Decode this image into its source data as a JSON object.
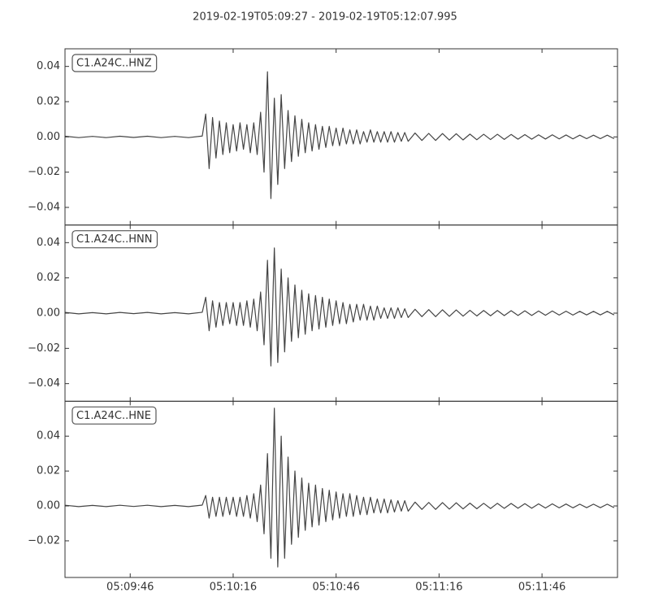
{
  "chart_data": {
    "type": "line",
    "title": "2019-02-19T05:09:27  -  2019-02-19T05:12:07.995",
    "xlim": [
      "05:09:27",
      "05:12:07.995"
    ],
    "xticks": [
      {
        "value": "05:09:46",
        "label": "05:09:46"
      },
      {
        "value": "05:10:16",
        "label": "05:10:16"
      },
      {
        "value": "05:10:46",
        "label": "05:10:46"
      },
      {
        "value": "05:11:16",
        "label": "05:11:16"
      },
      {
        "value": "05:11:46",
        "label": "05:11:46"
      }
    ],
    "x": [
      "05:09:27",
      "05:09:31",
      "05:09:35",
      "05:09:39",
      "05:09:43",
      "05:09:47",
      "05:09:51",
      "05:09:55",
      "05:09:59",
      "05:10:03",
      "05:10:07",
      "05:10:08",
      "05:10:09",
      "05:10:10",
      "05:10:11",
      "05:10:12",
      "05:10:13",
      "05:10:14",
      "05:10:15",
      "05:10:16",
      "05:10:17",
      "05:10:18",
      "05:10:19",
      "05:10:20",
      "05:10:21",
      "05:10:22",
      "05:10:23",
      "05:10:24",
      "05:10:25",
      "05:10:26",
      "05:10:27",
      "05:10:28",
      "05:10:29",
      "05:10:30",
      "05:10:31",
      "05:10:32",
      "05:10:33",
      "05:10:34",
      "05:10:35",
      "05:10:36",
      "05:10:37",
      "05:10:38",
      "05:10:39",
      "05:10:40",
      "05:10:41",
      "05:10:42",
      "05:10:43",
      "05:10:44",
      "05:10:45",
      "05:10:46",
      "05:10:47",
      "05:10:48",
      "05:10:49",
      "05:10:50",
      "05:10:51",
      "05:10:52",
      "05:10:53",
      "05:10:54",
      "05:10:55",
      "05:10:56",
      "05:10:57",
      "05:10:58",
      "05:10:59",
      "05:11:00",
      "05:11:01",
      "05:11:02",
      "05:11:03",
      "05:11:04",
      "05:11:05",
      "05:11:06",
      "05:11:07",
      "05:11:09",
      "05:11:11",
      "05:11:13",
      "05:11:15",
      "05:11:17",
      "05:11:19",
      "05:11:21",
      "05:11:23",
      "05:11:25",
      "05:11:27",
      "05:11:29",
      "05:11:31",
      "05:11:33",
      "05:11:35",
      "05:11:37",
      "05:11:39",
      "05:11:41",
      "05:11:43",
      "05:11:45",
      "05:11:47",
      "05:11:49",
      "05:11:51",
      "05:11:53",
      "05:11:55",
      "05:11:57",
      "05:11:59",
      "05:12:01",
      "05:12:03",
      "05:12:05",
      "05:12:07"
    ],
    "series": [
      {
        "name": "C1.A24C..HNZ",
        "color": "#444444",
        "ylim": [
          -0.05,
          0.05
        ],
        "yticks": [
          {
            "value": 0.04,
            "label": "0.04"
          },
          {
            "value": 0.02,
            "label": "0.02"
          },
          {
            "value": 0,
            "label": "0.00"
          },
          {
            "value": -0.02,
            "label": "−0.02"
          },
          {
            "value": -0.04,
            "label": "−0.04"
          }
        ],
        "values": [
          0.0004,
          -0.0004,
          0.0003,
          -0.0004,
          0.0004,
          -0.0003,
          0.0004,
          -0.0004,
          0.0003,
          -0.0004,
          0.0005,
          0.013,
          -0.018,
          0.011,
          -0.012,
          0.009,
          -0.01,
          0.008,
          -0.009,
          0.007,
          -0.008,
          0.008,
          -0.007,
          0.007,
          -0.009,
          0.008,
          -0.01,
          0.014,
          -0.02,
          0.037,
          -0.035,
          0.022,
          -0.027,
          0.024,
          -0.018,
          0.015,
          -0.014,
          0.012,
          -0.011,
          0.01,
          -0.009,
          0.008,
          -0.008,
          0.007,
          -0.007,
          0.006,
          -0.006,
          0.006,
          -0.005,
          0.005,
          -0.005,
          0.005,
          -0.004,
          0.004,
          -0.004,
          0.004,
          -0.004,
          0.003,
          -0.003,
          0.004,
          -0.003,
          0.003,
          -0.003,
          0.003,
          -0.003,
          0.003,
          -0.003,
          0.0025,
          -0.0025,
          0.0025,
          -0.0025,
          0.0022,
          -0.002,
          0.002,
          -0.002,
          0.0019,
          -0.0018,
          0.0018,
          -0.0017,
          0.0016,
          -0.0016,
          0.0015,
          -0.0015,
          0.0015,
          -0.0014,
          0.0014,
          -0.0013,
          0.0013,
          -0.0013,
          0.0012,
          -0.0012,
          0.0012,
          -0.0011,
          0.0011,
          -0.0011,
          0.001,
          -0.001,
          0.001,
          -0.001,
          0.001,
          -0.001
        ]
      },
      {
        "name": "C1.A24C..HNN",
        "color": "#444444",
        "ylim": [
          -0.05,
          0.05
        ],
        "yticks": [
          {
            "value": 0.04,
            "label": "0.04"
          },
          {
            "value": 0.02,
            "label": "0.02"
          },
          {
            "value": 0,
            "label": "0.00"
          },
          {
            "value": -0.02,
            "label": "−0.02"
          },
          {
            "value": -0.04,
            "label": "−0.04"
          }
        ],
        "values": [
          0.0004,
          -0.0004,
          0.0003,
          -0.0004,
          0.0004,
          -0.0003,
          0.0004,
          -0.0004,
          0.0003,
          -0.0004,
          0.0005,
          0.009,
          -0.01,
          0.007,
          -0.008,
          0.006,
          -0.007,
          0.006,
          -0.006,
          0.006,
          -0.007,
          0.006,
          -0.007,
          0.007,
          -0.008,
          0.008,
          -0.01,
          0.012,
          -0.018,
          0.03,
          -0.03,
          0.037,
          -0.028,
          0.025,
          -0.022,
          0.02,
          -0.016,
          0.016,
          -0.014,
          0.013,
          -0.012,
          0.011,
          -0.01,
          0.01,
          -0.009,
          0.009,
          -0.008,
          0.008,
          -0.007,
          0.007,
          -0.006,
          0.006,
          -0.006,
          0.005,
          -0.005,
          0.005,
          -0.004,
          0.005,
          -0.004,
          0.004,
          -0.004,
          0.004,
          -0.003,
          0.003,
          -0.003,
          0.003,
          -0.003,
          0.003,
          -0.0025,
          0.0025,
          -0.0025,
          0.0022,
          -0.002,
          0.002,
          -0.002,
          0.0019,
          -0.0018,
          0.0018,
          -0.0017,
          0.0016,
          -0.0016,
          0.0015,
          -0.0015,
          0.0015,
          -0.0014,
          0.0014,
          -0.0013,
          0.0013,
          -0.0013,
          0.0012,
          -0.0012,
          0.0012,
          -0.0011,
          0.0011,
          -0.0011,
          0.001,
          -0.001,
          0.001,
          -0.001,
          0.001,
          -0.001
        ]
      },
      {
        "name": "C1.A24C..HNE",
        "color": "#444444",
        "ylim": [
          -0.041,
          0.06
        ],
        "yticks": [
          {
            "value": 0.04,
            "label": "0.04"
          },
          {
            "value": 0.02,
            "label": "0.02"
          },
          {
            "value": 0,
            "label": "0.00"
          },
          {
            "value": -0.02,
            "label": "−0.02"
          }
        ],
        "values": [
          0.0004,
          -0.0004,
          0.0003,
          -0.0004,
          0.0004,
          -0.0003,
          0.0004,
          -0.0004,
          0.0003,
          -0.0004,
          0.0005,
          0.006,
          -0.007,
          0.005,
          -0.006,
          0.005,
          -0.006,
          0.005,
          -0.005,
          0.005,
          -0.006,
          0.005,
          -0.006,
          0.006,
          -0.007,
          0.007,
          -0.009,
          0.012,
          -0.016,
          0.03,
          -0.03,
          0.056,
          -0.035,
          0.04,
          -0.03,
          0.028,
          -0.022,
          0.02,
          -0.018,
          0.016,
          -0.014,
          0.013,
          -0.012,
          0.012,
          -0.011,
          0.01,
          -0.009,
          0.009,
          -0.008,
          0.008,
          -0.007,
          0.007,
          -0.006,
          0.007,
          -0.006,
          0.006,
          -0.005,
          0.005,
          -0.005,
          0.005,
          -0.004,
          0.004,
          -0.004,
          0.004,
          -0.004,
          0.0035,
          -0.0035,
          0.003,
          -0.003,
          0.003,
          -0.003,
          0.0022,
          -0.002,
          0.002,
          -0.002,
          0.0019,
          -0.0018,
          0.0018,
          -0.0017,
          0.0016,
          -0.0016,
          0.0015,
          -0.0015,
          0.0015,
          -0.0014,
          0.0014,
          -0.0013,
          0.0013,
          -0.0013,
          0.0012,
          -0.0012,
          0.0012,
          -0.0011,
          0.0011,
          -0.0011,
          0.001,
          -0.001,
          0.001,
          -0.001,
          0.001,
          -0.001
        ]
      }
    ]
  }
}
